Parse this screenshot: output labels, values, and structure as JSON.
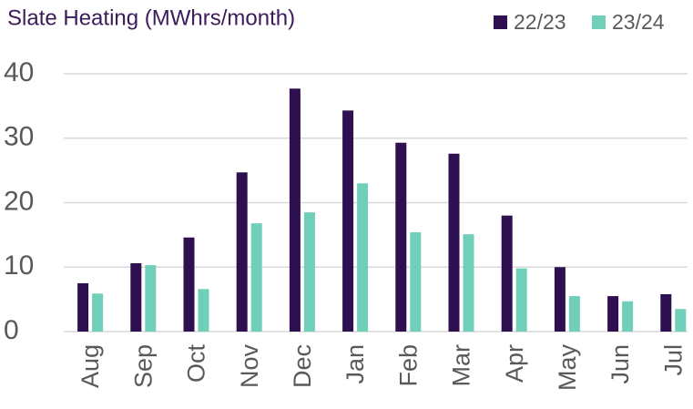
{
  "chart_data": {
    "type": "bar",
    "title": "Slate Heating (MWhrs/month)",
    "categories": [
      "Aug",
      "Sep",
      "Oct",
      "Nov",
      "Dec",
      "Jan",
      "Feb",
      "Mar",
      "Apr",
      "May",
      "Jun",
      "Jul"
    ],
    "series": [
      {
        "name": "22/23",
        "color": "#2e0f4f",
        "values": [
          7.5,
          10.6,
          14.6,
          24.7,
          37.7,
          34.3,
          29.3,
          27.6,
          18.0,
          10.0,
          5.5,
          5.8
        ]
      },
      {
        "name": "23/24",
        "color": "#6fcfb9",
        "values": [
          5.9,
          10.3,
          6.6,
          16.8,
          18.5,
          23.0,
          15.4,
          15.1,
          9.8,
          5.5,
          4.7,
          3.5
        ]
      }
    ],
    "ylim": [
      0,
      40
    ],
    "yticks": [
      0,
      10,
      20,
      30,
      40
    ],
    "grid": true,
    "legend": "top-right"
  }
}
